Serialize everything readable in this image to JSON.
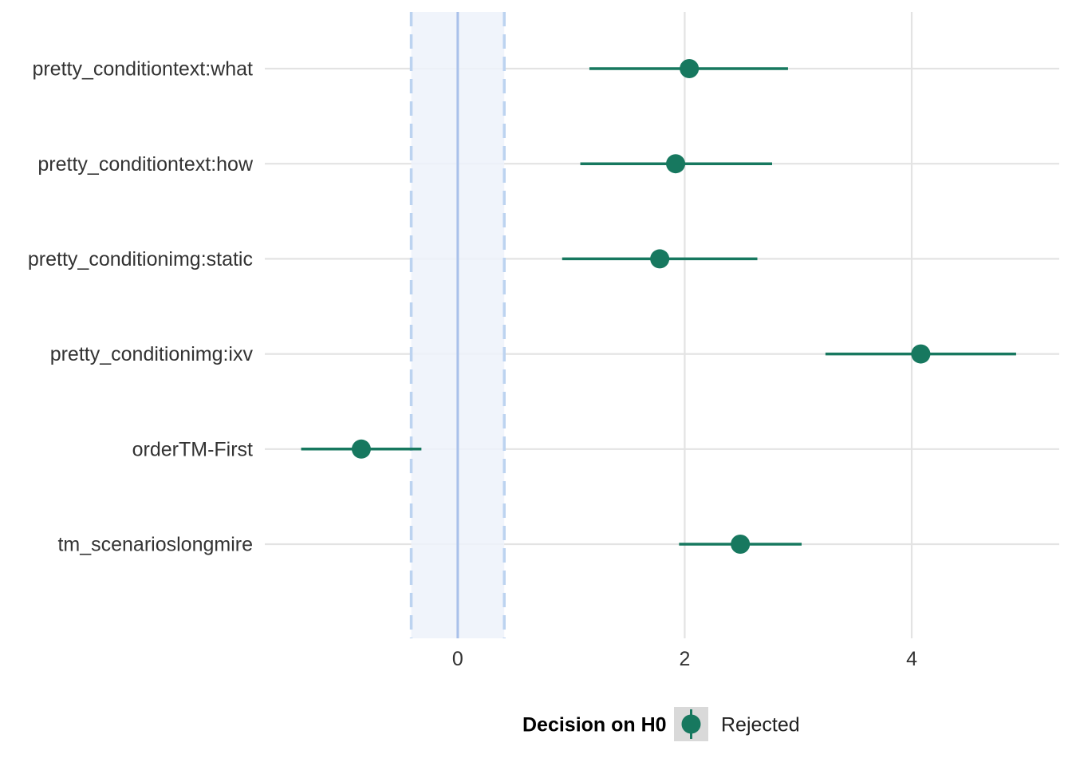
{
  "chart_data": {
    "type": "forest",
    "categories": [
      "pretty_conditiontext:what",
      "pretty_conditiontext:how",
      "pretty_conditionimg:static",
      "pretty_conditionimg:ixv",
      "orderTM-First",
      "tm_scenarioslongmire"
    ],
    "estimates": [
      2.04,
      1.92,
      1.78,
      4.08,
      -0.85,
      2.49
    ],
    "ci_low": [
      1.16,
      1.08,
      0.92,
      3.24,
      -1.38,
      1.95
    ],
    "ci_high": [
      2.91,
      2.77,
      2.64,
      4.92,
      -0.32,
      3.03
    ],
    "rope": [
      -0.41,
      0.41
    ],
    "reference_line": 0,
    "xlim": [
      -1.7,
      5.3
    ],
    "xticks": [
      0,
      2,
      4
    ],
    "tick_labels": [
      "0",
      "2",
      "4"
    ],
    "xlabel": "",
    "ylabel": "",
    "grid": true,
    "legend": {
      "title": "Decision on H0",
      "entries": [
        "Rejected"
      ],
      "position": "bottom"
    },
    "colors": {
      "series": "#17785f",
      "rope_fill": "#edf2fa",
      "rope_line": "#bcd3f0",
      "reference": "#a9c1ea",
      "grid": "#e3e3e3",
      "legend_key_bg": "#d9d9d9"
    }
  }
}
